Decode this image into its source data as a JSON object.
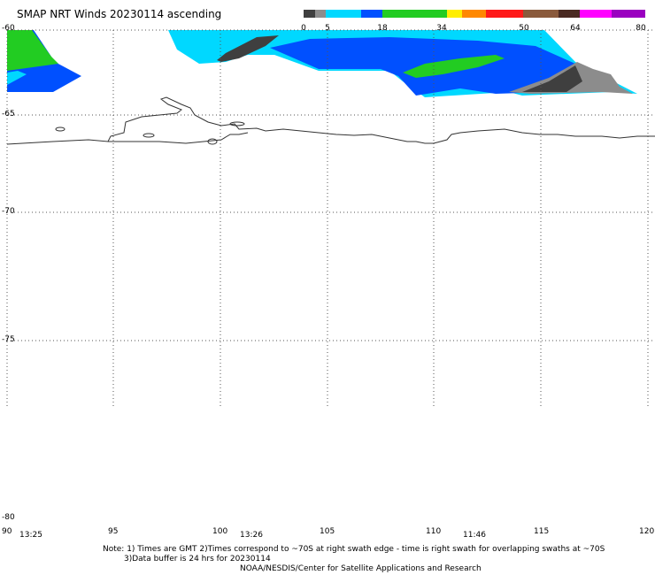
{
  "title": "SMAP NRT Winds 20230114 ascending",
  "colorbar": {
    "labels": [
      "0",
      "5",
      "18",
      "34",
      "50",
      "64",
      "80"
    ],
    "colors": {
      "calm_gray": "#3f3f3f",
      "light_gray": "#8c8c8c",
      "cyan": "#00d8ff",
      "blue": "#0050ff",
      "green": "#22cc22",
      "yellow": "#ffee00",
      "orange": "#ff8800",
      "red": "#ff1a1a",
      "brown": "#8a5a3c",
      "dark_brown": "#4a2a22",
      "magenta": "#ff00ff",
      "purple": "#9a00c0"
    }
  },
  "axes": {
    "lat_labels": [
      "-60",
      "-65",
      "-70",
      "-75",
      "-80"
    ],
    "lon_labels": [
      "90",
      "95",
      "100",
      "105",
      "110",
      "115",
      "120"
    ]
  },
  "times": [
    "13:25",
    "13:26",
    "11:46"
  ],
  "notes": {
    "line1": "Note: 1) Times are GMT 2)Times correspond to ~70S at right swath edge - time is right swath for overlapping swaths at ~70S",
    "line2": "3)Data buffer is 24 hrs for 20230114",
    "line3": "NOAA/NESDIS/Center for Satellite Applications and Research"
  }
}
